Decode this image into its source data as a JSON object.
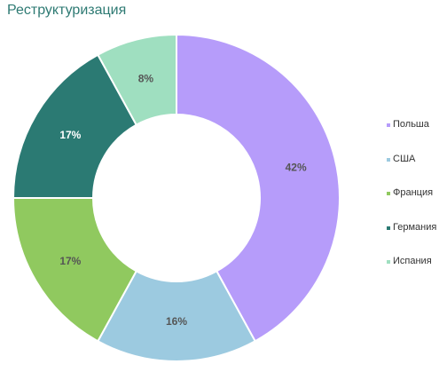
{
  "chart_data": {
    "type": "pie",
    "title": "Реструктуризация",
    "legend_position": "right",
    "categories": [
      "Польша",
      "США",
      "Франция",
      "Германия",
      "Испания"
    ],
    "values": [
      42,
      16,
      17,
      17,
      8
    ],
    "value_labels": [
      "42%",
      "16%",
      "17%",
      "17%",
      "8%"
    ],
    "colors": [
      "#b69cfa",
      "#9ccae0",
      "#90c95f",
      "#2b7a73",
      "#9fdfc0"
    ],
    "label_colors": [
      "#555555",
      "#555555",
      "#555555",
      "#ffffff",
      "#555555"
    ]
  }
}
